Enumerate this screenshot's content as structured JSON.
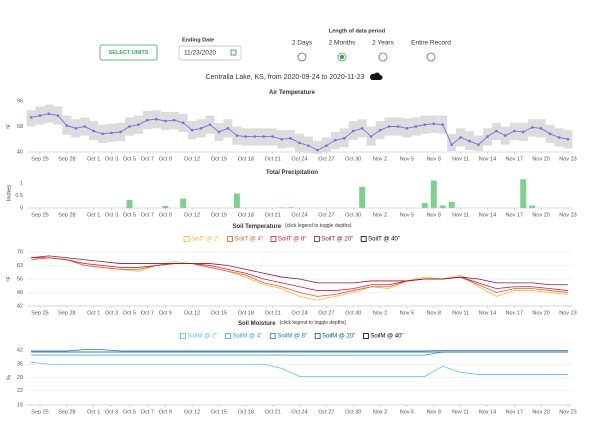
{
  "controls": {
    "select_units": "SELECT UNITS",
    "ending_date_label": "Ending Date",
    "ending_date": "11/23/2020",
    "period_label": "Length of data period",
    "periods": [
      "2 Days",
      "2 Months",
      "2 Years",
      "Entire Record"
    ],
    "selected_period": 1
  },
  "station_title": "Centralia Lake, KS, from 2020-09-24 to 2020-11-23",
  "chart_data": [
    {
      "type": "line",
      "title": "Air Temperature",
      "y_label": "°F",
      "color": "#6f73de",
      "band_color": "#dcdcdc",
      "x": [
        "Sep 24",
        "Sep 25",
        "Sep 26",
        "Sep 27",
        "Sep 28",
        "Sep 29",
        "Sep 30",
        "Oct 1",
        "Oct 2",
        "Oct 3",
        "Oct 4",
        "Oct 5",
        "Oct 6",
        "Oct 7",
        "Oct 8",
        "Oct 9",
        "Oct 10",
        "Oct 11",
        "Oct 12",
        "Oct 13",
        "Oct 14",
        "Oct 15",
        "Oct 16",
        "Oct 17",
        "Oct 18",
        "Oct 19",
        "Oct 20",
        "Oct 21",
        "Oct 22",
        "Oct 23",
        "Oct 24",
        "Oct 25",
        "Oct 26",
        "Oct 27",
        "Oct 28",
        "Oct 29",
        "Oct 30",
        "Oct 31",
        "Nov 1",
        "Nov 2",
        "Nov 3",
        "Nov 4",
        "Nov 5",
        "Nov 6",
        "Nov 7",
        "Nov 8",
        "Nov 9",
        "Nov 10",
        "Nov 11",
        "Nov 12",
        "Nov 13",
        "Nov 14",
        "Nov 15",
        "Nov 16",
        "Nov 17",
        "Nov 18",
        "Nov 19",
        "Nov 20",
        "Nov 21",
        "Nov 22",
        "Nov 23"
      ],
      "values": [
        78,
        80,
        82,
        80,
        69,
        66,
        68,
        63,
        60,
        61,
        62,
        68,
        70,
        75,
        76,
        74,
        75,
        72,
        64,
        66,
        70,
        62,
        66,
        58,
        57,
        57,
        57,
        57,
        54,
        55,
        50,
        47,
        42,
        47,
        53,
        55,
        63,
        66,
        57,
        64,
        68,
        68,
        66,
        68,
        70,
        71,
        70,
        48,
        56,
        52,
        48,
        57,
        63,
        58,
        63,
        62,
        67,
        66,
        60,
        56,
        54
      ],
      "high": [
        86,
        90,
        92,
        90,
        80,
        76,
        78,
        74,
        70,
        71,
        72,
        78,
        80,
        85,
        86,
        84,
        84,
        82,
        74,
        76,
        80,
        72,
        76,
        68,
        66,
        66,
        66,
        66,
        64,
        64,
        60,
        57,
        52,
        56,
        62,
        66,
        74,
        76,
        68,
        74,
        78,
        78,
        77,
        78,
        80,
        80,
        80,
        60,
        66,
        63,
        58,
        66,
        72,
        68,
        72,
        72,
        76,
        76,
        70,
        66,
        64
      ],
      "low": [
        68,
        70,
        72,
        70,
        59,
        56,
        58,
        53,
        50,
        51,
        52,
        58,
        60,
        65,
        66,
        64,
        65,
        62,
        54,
        56,
        60,
        52,
        56,
        48,
        47,
        47,
        47,
        47,
        44,
        45,
        40,
        39,
        38,
        40,
        43,
        45,
        53,
        56,
        47,
        54,
        58,
        58,
        56,
        58,
        60,
        61,
        60,
        41,
        46,
        42,
        41,
        47,
        53,
        48,
        53,
        52,
        57,
        56,
        50,
        46,
        44
      ],
      "ylim": [
        40,
        96
      ],
      "yticks": [
        40,
        68,
        96
      ],
      "grid": false,
      "xticks": [
        "Sep 25",
        "Sep 28",
        "Oct 1",
        "Oct 3",
        "Oct 5",
        "Oct 7",
        "Oct 9",
        "Oct 12",
        "Oct 15",
        "Oct 18",
        "Oct 21",
        "Oct 24",
        "Oct 27",
        "Oct 30",
        "Nov 2",
        "Nov 5",
        "Nov 8",
        "Nov 11",
        "Nov 14",
        "Nov 17",
        "Nov 20",
        "Nov 23"
      ]
    },
    {
      "type": "bar",
      "title": "Total Precipitation",
      "y_label": "Inches",
      "color": "#7fcf8f",
      "x": [
        "Oct 5",
        "Oct 9",
        "Oct 11",
        "Oct 17",
        "Oct 22",
        "Oct 23",
        "Oct 31",
        "Nov 7",
        "Nov 8",
        "Nov 9",
        "Nov 10",
        "Nov 18",
        "Nov 19"
      ],
      "values": [
        0.32,
        0.08,
        0.38,
        0.58,
        0.02,
        0.03,
        0.85,
        0.2,
        1.1,
        0.1,
        0.25,
        1.15,
        0.1
      ],
      "ylim": [
        0,
        1.2
      ],
      "yticks": [
        0,
        0.5,
        1
      ],
      "grid": false,
      "xticks": [
        "Sep 25",
        "Sep 28",
        "Oct 1",
        "Oct 3",
        "Oct 5",
        "Oct 7",
        "Oct 9",
        "Oct 12",
        "Oct 15",
        "Oct 18",
        "Oct 21",
        "Oct 24",
        "Oct 27",
        "Oct 30",
        "Nov 2",
        "Nov 5",
        "Nov 8",
        "Nov 11",
        "Nov 14",
        "Nov 17",
        "Nov 20",
        "Nov 23"
      ]
    },
    {
      "type": "line",
      "title": "Soil Temperature",
      "subtitle": "(click legend to toggle depths)",
      "y_label": "°F",
      "x": [
        "Sep 24",
        "Sep 26",
        "Sep 28",
        "Sep 30",
        "Oct 2",
        "Oct 4",
        "Oct 6",
        "Oct 8",
        "Oct 10",
        "Oct 12",
        "Oct 14",
        "Oct 16",
        "Oct 18",
        "Oct 20",
        "Oct 22",
        "Oct 24",
        "Oct 26",
        "Oct 28",
        "Oct 30",
        "Nov 1",
        "Nov 3",
        "Nov 5",
        "Nov 7",
        "Nov 9",
        "Nov 11",
        "Nov 13",
        "Nov 15",
        "Nov 17",
        "Nov 19",
        "Nov 21",
        "Nov 23"
      ],
      "series": [
        {
          "name": "SoilT @ 2\"",
          "color": "#f6b93b",
          "values": [
            66,
            67,
            66,
            63,
            62,
            61,
            60,
            63,
            65,
            64,
            62,
            60,
            57,
            53,
            51,
            47,
            45,
            47,
            49,
            52,
            51,
            55,
            57,
            56,
            58,
            52,
            47,
            50,
            50,
            49,
            48
          ]
        },
        {
          "name": "SoilT @ 4\"",
          "color": "#f05a28",
          "values": [
            66,
            67,
            66,
            63,
            62,
            61,
            61,
            63,
            64,
            64,
            62,
            60,
            58,
            54,
            52,
            49,
            47,
            48,
            50,
            52,
            52,
            55,
            56,
            56,
            57,
            53,
            49,
            51,
            51,
            50,
            49
          ]
        },
        {
          "name": "SoilT @ 8\"",
          "color": "#d81b3c",
          "values": [
            67,
            67,
            66,
            64,
            63,
            62,
            62,
            63,
            64,
            64,
            63,
            61,
            59,
            56,
            54,
            52,
            50,
            50,
            51,
            53,
            53,
            55,
            56,
            56,
            57,
            54,
            51,
            52,
            52,
            51,
            50
          ]
        },
        {
          "name": "SoilT @ 20\"",
          "color": "#8b1a2b",
          "values": [
            67,
            68,
            67,
            66,
            65,
            64,
            64,
            64,
            64,
            64,
            64,
            63,
            61,
            59,
            57,
            56,
            54,
            54,
            54,
            55,
            55,
            55,
            56,
            56,
            57,
            56,
            54,
            54,
            54,
            53,
            53
          ]
        },
        {
          "name": "SoilT @ 40\"",
          "color": "#000000",
          "visible": false
        }
      ],
      "ylim": [
        42,
        70
      ],
      "yticks": [
        42,
        49,
        56,
        63,
        70
      ],
      "grid": true,
      "xticks": [
        "Sep 25",
        "Sep 28",
        "Oct 1",
        "Oct 3",
        "Oct 5",
        "Oct 7",
        "Oct 9",
        "Oct 12",
        "Oct 15",
        "Oct 18",
        "Oct 21",
        "Oct 24",
        "Oct 27",
        "Oct 30",
        "Nov 2",
        "Nov 5",
        "Nov 8",
        "Nov 11",
        "Nov 14",
        "Nov 17",
        "Nov 20",
        "Nov 23"
      ]
    },
    {
      "type": "line",
      "title": "Soil Moisture",
      "subtitle": "(click legend to toggle depths)",
      "y_label": "%",
      "x": [
        "Sep 24",
        "Sep 26",
        "Sep 28",
        "Sep 30",
        "Oct 2",
        "Oct 4",
        "Oct 6",
        "Oct 8",
        "Oct 10",
        "Oct 12",
        "Oct 14",
        "Oct 16",
        "Oct 18",
        "Oct 20",
        "Oct 22",
        "Oct 24",
        "Oct 26",
        "Oct 28",
        "Oct 30",
        "Nov 1",
        "Nov 3",
        "Nov 5",
        "Nov 7",
        "Nov 9",
        "Nov 11",
        "Nov 13",
        "Nov 15",
        "Nov 17",
        "Nov 19",
        "Nov 21",
        "Nov 23"
      ],
      "series": [
        {
          "name": "SoilM @ 2\"",
          "color": "#4fc3f7",
          "values": [
            36,
            35,
            35,
            35,
            35,
            35,
            35,
            35,
            35,
            35,
            35,
            35,
            35,
            35,
            33,
            29,
            29,
            29,
            29,
            29,
            29,
            29,
            29,
            34,
            31,
            30,
            30,
            30,
            30,
            30,
            30
          ]
        },
        {
          "name": "SoilM @ 4\"",
          "color": "#29a3d8",
          "values": [
            39.5,
            39.5,
            39.5,
            39.5,
            39.5,
            39.5,
            39.5,
            39.5,
            39.5,
            39.5,
            39.5,
            39.5,
            39.5,
            39.5,
            39.5,
            39.5,
            39.5,
            39.5,
            39.5,
            39.5,
            39.5,
            39.5,
            39.5,
            41,
            41,
            41,
            41,
            41,
            41,
            41,
            41
          ]
        },
        {
          "name": "SoilM @ 8\"",
          "color": "#1f78b4",
          "values": [
            41.5,
            41.5,
            41.5,
            42.2,
            42.2,
            41.5,
            41.5,
            41.5,
            41.5,
            41.5,
            41.5,
            41.5,
            41.5,
            41.5,
            41.5,
            41.5,
            41.5,
            41.5,
            41.5,
            41.5,
            41.5,
            41.5,
            41.5,
            41.8,
            41.8,
            41.8,
            41.8,
            41.8,
            41.8,
            41.8,
            41.8
          ]
        },
        {
          "name": "SoilM @ 20\"",
          "color": "#134e6f",
          "values": [
            41,
            41,
            41,
            41,
            41,
            41,
            41,
            41,
            41,
            41,
            41,
            41,
            41,
            41,
            41,
            41,
            41,
            41,
            41,
            41,
            41,
            41,
            41,
            41,
            41,
            41,
            41,
            41,
            41,
            41,
            41
          ]
        },
        {
          "name": "SoilM @ 40\"",
          "color": "#000000",
          "visible": false
        }
      ],
      "ylim": [
        15,
        42
      ],
      "yticks": [
        15,
        22,
        {
          "value": 28.5,
          "label": "29"
        },
        35,
        42
      ],
      "grid": true,
      "xticks": [
        "Sep 25",
        "Sep 28",
        "Oct 1",
        "Oct 3",
        "Oct 5",
        "Oct 7",
        "Oct 9",
        "Oct 12",
        "Oct 15",
        "Oct 18",
        "Oct 21",
        "Oct 24",
        "Oct 27",
        "Oct 30",
        "Nov 2",
        "Nov 5",
        "Nov 8",
        "Nov 11",
        "Nov 14",
        "Nov 17",
        "Nov 20",
        "Nov 23"
      ]
    }
  ]
}
